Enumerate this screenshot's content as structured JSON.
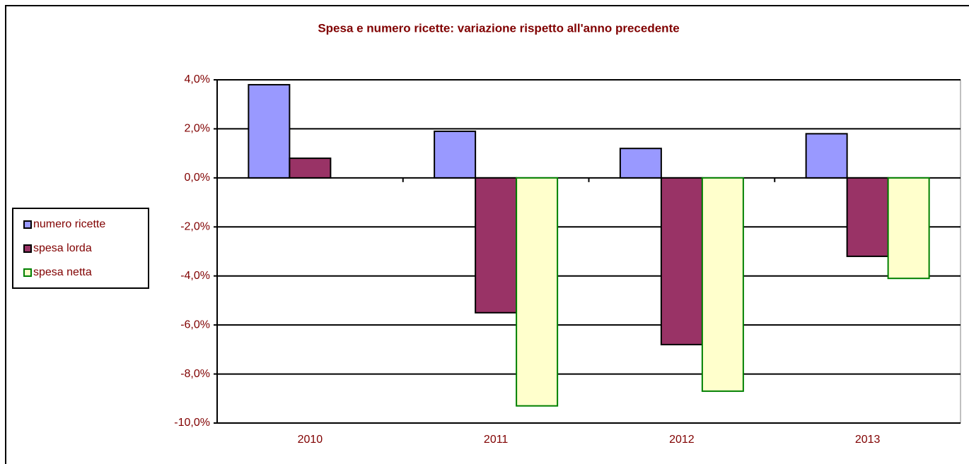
{
  "chart_data": {
    "type": "bar",
    "title": "Spesa e numero ricette: variazione  rispetto all'anno precedente",
    "categories": [
      "2010",
      "2011",
      "2012",
      "2013"
    ],
    "series": [
      {
        "name": "numero ricette",
        "color": "#9999ff",
        "values": [
          3.8,
          1.9,
          1.2,
          1.8
        ]
      },
      {
        "name": "spesa lorda",
        "color": "#993366",
        "values": [
          0.8,
          -5.5,
          -6.8,
          -3.2
        ]
      },
      {
        "name": "spesa netta",
        "color": "#ffffcc",
        "values": [
          null,
          -9.3,
          -8.7,
          -4.1
        ]
      }
    ],
    "ylim": [
      -10,
      4
    ],
    "yticks": [
      {
        "value": -10,
        "label": "-10,0%"
      },
      {
        "value": -8,
        "label": "-8,0%"
      },
      {
        "value": -6,
        "label": "-6,0%"
      },
      {
        "value": -4,
        "label": "-4,0%"
      },
      {
        "value": -2,
        "label": "-2,0%"
      },
      {
        "value": 0,
        "label": "0,0%"
      },
      {
        "value": 2,
        "label": "2,0%"
      },
      {
        "value": 4,
        "label": "4,0%"
      }
    ],
    "grid": true,
    "legend": "left"
  }
}
